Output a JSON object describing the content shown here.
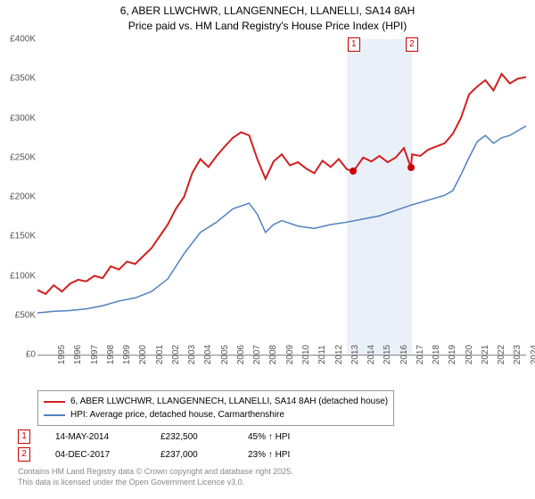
{
  "title_line1": "6, ABER LLWCHWR, LLANGENNECH, LLANELLI, SA14 8AH",
  "title_line2": "Price paid vs. HM Land Registry's House Price Index (HPI)",
  "chart": {
    "type": "line",
    "ylim": [
      0,
      400000
    ],
    "ytick_step": 50000,
    "yticks": [
      "£0",
      "£50K",
      "£100K",
      "£150K",
      "£200K",
      "£250K",
      "£300K",
      "£350K",
      "£400K"
    ],
    "xlim": [
      1995,
      2025
    ],
    "xticks": [
      1995,
      1996,
      1997,
      1998,
      1999,
      2000,
      2001,
      2002,
      2003,
      2004,
      2005,
      2006,
      2007,
      2008,
      2009,
      2010,
      2011,
      2012,
      2013,
      2014,
      2015,
      2016,
      2017,
      2018,
      2019,
      2020,
      2021,
      2022,
      2023,
      2024,
      2025
    ],
    "highlight_band": {
      "start": 2014,
      "end": 2018,
      "color": "#eaf0f8"
    },
    "series": [
      {
        "name": "property",
        "color": "#d02020",
        "width": 2,
        "data": [
          [
            1995,
            82000
          ],
          [
            1995.5,
            77000
          ],
          [
            1996,
            88000
          ],
          [
            1996.5,
            80000
          ],
          [
            1997,
            90000
          ],
          [
            1997.5,
            95000
          ],
          [
            1998,
            93000
          ],
          [
            1998.5,
            100000
          ],
          [
            1999,
            97000
          ],
          [
            1999.5,
            112000
          ],
          [
            2000,
            108000
          ],
          [
            2000.5,
            118000
          ],
          [
            2001,
            115000
          ],
          [
            2001.5,
            125000
          ],
          [
            2002,
            135000
          ],
          [
            2002.5,
            150000
          ],
          [
            2003,
            165000
          ],
          [
            2003.5,
            185000
          ],
          [
            2004,
            200000
          ],
          [
            2004.5,
            230000
          ],
          [
            2005,
            248000
          ],
          [
            2005.5,
            238000
          ],
          [
            2006,
            252000
          ],
          [
            2006.5,
            264000
          ],
          [
            2007,
            275000
          ],
          [
            2007.5,
            282000
          ],
          [
            2008,
            278000
          ],
          [
            2008.5,
            248000
          ],
          [
            2009,
            223000
          ],
          [
            2009.5,
            245000
          ],
          [
            2010,
            254000
          ],
          [
            2010.5,
            240000
          ],
          [
            2011,
            244000
          ],
          [
            2011.5,
            236000
          ],
          [
            2012,
            230000
          ],
          [
            2012.5,
            246000
          ],
          [
            2013,
            238000
          ],
          [
            2013.5,
            248000
          ],
          [
            2014,
            235000
          ],
          [
            2014.4,
            232500
          ],
          [
            2015,
            250000
          ],
          [
            2015.5,
            245000
          ],
          [
            2016,
            252000
          ],
          [
            2016.5,
            244000
          ],
          [
            2017,
            250000
          ],
          [
            2017.5,
            262000
          ],
          [
            2017.93,
            237000
          ],
          [
            2018,
            254000
          ],
          [
            2018.5,
            252000
          ],
          [
            2019,
            260000
          ],
          [
            2019.5,
            264000
          ],
          [
            2020,
            268000
          ],
          [
            2020.5,
            280000
          ],
          [
            2021,
            300000
          ],
          [
            2021.5,
            330000
          ],
          [
            2022,
            340000
          ],
          [
            2022.5,
            348000
          ],
          [
            2023,
            335000
          ],
          [
            2023.5,
            356000
          ],
          [
            2024,
            344000
          ],
          [
            2024.5,
            350000
          ],
          [
            2025,
            352000
          ]
        ]
      },
      {
        "name": "hpi",
        "color": "#5080c0",
        "width": 1.5,
        "data": [
          [
            1995,
            53000
          ],
          [
            1996,
            55000
          ],
          [
            1997,
            56000
          ],
          [
            1998,
            58000
          ],
          [
            1999,
            62000
          ],
          [
            2000,
            68000
          ],
          [
            2001,
            72000
          ],
          [
            2002,
            80000
          ],
          [
            2003,
            96000
          ],
          [
            2004,
            128000
          ],
          [
            2005,
            155000
          ],
          [
            2006,
            168000
          ],
          [
            2007,
            185000
          ],
          [
            2008,
            192000
          ],
          [
            2008.5,
            178000
          ],
          [
            2009,
            155000
          ],
          [
            2009.5,
            165000
          ],
          [
            2010,
            170000
          ],
          [
            2011,
            163000
          ],
          [
            2012,
            160000
          ],
          [
            2013,
            165000
          ],
          [
            2014,
            168000
          ],
          [
            2015,
            172000
          ],
          [
            2016,
            176000
          ],
          [
            2017,
            183000
          ],
          [
            2018,
            190000
          ],
          [
            2019,
            196000
          ],
          [
            2020,
            202000
          ],
          [
            2020.5,
            208000
          ],
          [
            2021,
            228000
          ],
          [
            2021.5,
            250000
          ],
          [
            2022,
            270000
          ],
          [
            2022.5,
            278000
          ],
          [
            2023,
            268000
          ],
          [
            2023.5,
            275000
          ],
          [
            2024,
            278000
          ],
          [
            2024.5,
            284000
          ],
          [
            2025,
            290000
          ]
        ]
      }
    ],
    "sale_markers": [
      {
        "n": "1",
        "x": 2014.37,
        "y": 232500
      },
      {
        "n": "2",
        "x": 2017.93,
        "y": 237000
      }
    ]
  },
  "legend": {
    "row1": {
      "color": "#d02020",
      "text": "6, ABER LLWCHWR, LLANGENNECH, LLANELLI, SA14 8AH (detached house)"
    },
    "row2": {
      "color": "#5080c0",
      "text": "HPI: Average price, detached house, Carmarthenshire"
    }
  },
  "sales": [
    {
      "n": "1",
      "date": "14-MAY-2014",
      "price": "£232,500",
      "pct": "45% ↑ HPI"
    },
    {
      "n": "2",
      "date": "04-DEC-2017",
      "price": "£237,000",
      "pct": "23% ↑ HPI"
    }
  ],
  "footer_line1": "Contains HM Land Registry data © Crown copyright and database right 2025.",
  "footer_line2": "This data is licensed under the Open Government Licence v3.0."
}
